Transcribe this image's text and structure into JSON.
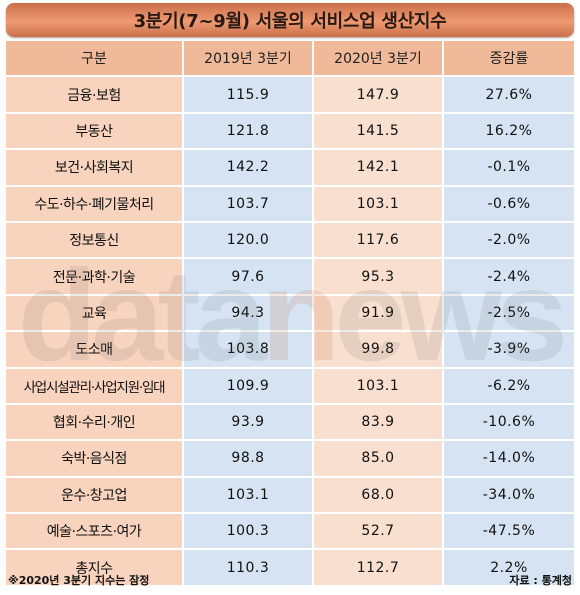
{
  "title": "3분기(7~9월) 서울의 서비스업 생산지수",
  "table": {
    "headers": [
      "구분",
      "2019년 3분기",
      "2020년 3분기",
      "증감률"
    ],
    "rows": [
      {
        "category": "금융·보험",
        "q3_2019": "115.9",
        "q3_2020": "147.9",
        "change": "27.6%"
      },
      {
        "category": "부동산",
        "q3_2019": "121.8",
        "q3_2020": "141.5",
        "change": "16.2%"
      },
      {
        "category": "보건·사회복지",
        "q3_2019": "142.2",
        "q3_2020": "142.1",
        "change": "-0.1%"
      },
      {
        "category": "수도·하수·폐기물처리",
        "q3_2019": "103.7",
        "q3_2020": "103.1",
        "change": "-0.6%"
      },
      {
        "category": "정보통신",
        "q3_2019": "120.0",
        "q3_2020": "117.6",
        "change": "-2.0%"
      },
      {
        "category": "전문·과학·기술",
        "q3_2019": "97.6",
        "q3_2020": "95.3",
        "change": "-2.4%"
      },
      {
        "category": "교육",
        "q3_2019": "94.3",
        "q3_2020": "91.9",
        "change": "-2.5%"
      },
      {
        "category": "도소매",
        "q3_2019": "103.8",
        "q3_2020": "99.8",
        "change": "-3.9%"
      },
      {
        "category": "사업시설관리·사업지원·임대",
        "q3_2019": "109.9",
        "q3_2020": "103.1",
        "change": "-6.2%"
      },
      {
        "category": "협회·수리·개인",
        "q3_2019": "93.9",
        "q3_2020": "83.9",
        "change": "-10.6%"
      },
      {
        "category": "숙박·음식점",
        "q3_2019": "98.8",
        "q3_2020": "85.0",
        "change": "-14.0%"
      },
      {
        "category": "운수·창고업",
        "q3_2019": "103.1",
        "q3_2020": "68.0",
        "change": "-34.0%"
      },
      {
        "category": "예술·스포츠·여가",
        "q3_2019": "100.3",
        "q3_2020": "52.7",
        "change": "-47.5%"
      },
      {
        "category": "총지수",
        "q3_2019": "110.3",
        "q3_2020": "112.7",
        "change": "2.2%"
      }
    ]
  },
  "watermark": {
    "part1": "data",
    "part2": "n",
    "part3": "ews"
  },
  "footer": {
    "note": "※2020년 3분기 지수는 잠정",
    "source": "자료 : 통계청"
  },
  "colors": {
    "title_bar": "#ee9a72",
    "header_cell": "#efb99a",
    "category_cell": "#f8d3bd",
    "value_blue": "#d5e3f2",
    "value_peach": "#f8dfcf"
  }
}
